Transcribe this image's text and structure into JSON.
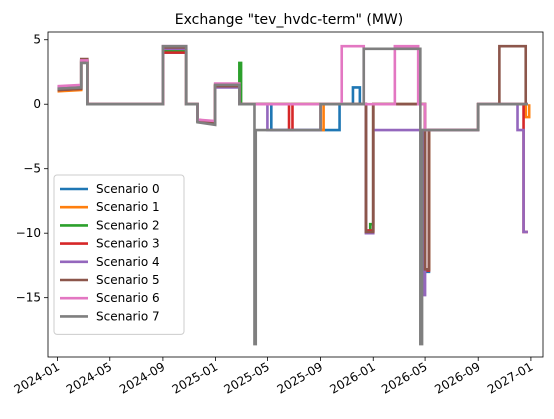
{
  "chart_data": {
    "type": "line",
    "title": "Exchange \"tev_hvdc-term\" (MW)",
    "xlabel": "",
    "ylabel": "",
    "x_axis": "date",
    "xlim": [
      "2023-12-10",
      "2027-01-29"
    ],
    "ylim": [
      -19.6,
      5.6
    ],
    "x_ticks": [
      "2024-01-01",
      "2024-05-01",
      "2024-09-01",
      "2025-01-01",
      "2025-05-01",
      "2025-09-01",
      "2026-01-01",
      "2026-05-01",
      "2026-09-01",
      "2027-01-01"
    ],
    "x_tick_labels": [
      "2024-01",
      "2024-05",
      "2024-09",
      "2025-01",
      "2025-05",
      "2025-09",
      "2026-01",
      "2026-05",
      "2026-09",
      "2027-01"
    ],
    "y_ticks": [
      5,
      0,
      -5,
      -10,
      -15
    ],
    "y_tick_labels": [
      "5",
      "0",
      "−5",
      "−10",
      "−15"
    ],
    "grid": false,
    "legend_position": "lower-left",
    "series": [
      {
        "name": "Scenario 0",
        "color": "#1f77b4",
        "points": [
          [
            "2024-01-01",
            1.3
          ],
          [
            "2024-02-25",
            1.4
          ],
          [
            "2024-02-25",
            3.3
          ],
          [
            "2024-03-10",
            3.3
          ],
          [
            "2024-03-10",
            0
          ],
          [
            "2024-09-01",
            0
          ],
          [
            "2024-09-01",
            4.0
          ],
          [
            "2024-10-25",
            4.0
          ],
          [
            "2024-10-25",
            0
          ],
          [
            "2024-11-20",
            0
          ],
          [
            "2024-11-20",
            -1.3
          ],
          [
            "2024-12-31",
            -1.4
          ],
          [
            "2024-12-31",
            1.4
          ],
          [
            "2025-02-25",
            1.4
          ],
          [
            "2025-02-25",
            0
          ],
          [
            "2025-05-10",
            0
          ],
          [
            "2025-05-10",
            -2.0
          ],
          [
            "2025-10-15",
            -2.0
          ],
          [
            "2025-10-15",
            0
          ],
          [
            "2025-11-15",
            0
          ],
          [
            "2025-11-15",
            1.3
          ],
          [
            "2025-12-01",
            1.3
          ],
          [
            "2025-12-01",
            0
          ],
          [
            "2025-12-15",
            0
          ],
          [
            "2025-12-15",
            -9.8
          ],
          [
            "2026-01-01",
            -9.8
          ],
          [
            "2026-01-01",
            0
          ],
          [
            "2026-05-01",
            0
          ],
          [
            "2026-05-01",
            -13.0
          ],
          [
            "2026-05-10",
            -13.0
          ],
          [
            "2026-05-10",
            -2.0
          ],
          [
            "2026-09-01",
            -2.0
          ],
          [
            "2026-09-01",
            0
          ],
          [
            "2026-12-25",
            0
          ]
        ]
      },
      {
        "name": "Scenario 1",
        "color": "#ff7f0e",
        "points": [
          [
            "2024-01-01",
            1.0
          ],
          [
            "2024-02-25",
            1.1
          ],
          [
            "2024-02-25",
            3.3
          ],
          [
            "2024-03-10",
            3.3
          ],
          [
            "2024-03-10",
            0
          ],
          [
            "2024-09-01",
            0
          ],
          [
            "2024-09-01",
            4.2
          ],
          [
            "2024-10-25",
            4.2
          ],
          [
            "2024-10-25",
            0
          ],
          [
            "2024-11-20",
            0
          ],
          [
            "2024-11-20",
            -1.3
          ],
          [
            "2024-12-31",
            -1.5
          ],
          [
            "2024-12-31",
            1.5
          ],
          [
            "2025-02-25",
            1.5
          ],
          [
            "2025-02-25",
            0
          ],
          [
            "2025-09-01",
            0
          ],
          [
            "2025-09-01",
            -2.0
          ],
          [
            "2025-09-08",
            -2.0
          ],
          [
            "2025-09-08",
            0
          ],
          [
            "2025-12-15",
            0
          ],
          [
            "2025-12-15",
            -9.9
          ],
          [
            "2026-01-01",
            -9.9
          ],
          [
            "2026-01-01",
            0
          ],
          [
            "2026-05-01",
            0
          ],
          [
            "2026-05-01",
            -12.8
          ],
          [
            "2026-05-10",
            -12.8
          ],
          [
            "2026-05-10",
            -2.0
          ],
          [
            "2026-09-01",
            -2.0
          ],
          [
            "2026-09-01",
            0
          ],
          [
            "2026-12-20",
            0
          ],
          [
            "2026-12-20",
            -1.0
          ],
          [
            "2026-12-28",
            -1.0
          ],
          [
            "2026-12-28",
            0
          ]
        ]
      },
      {
        "name": "Scenario 2",
        "color": "#2ca02c",
        "points": [
          [
            "2024-01-01",
            1.2
          ],
          [
            "2024-02-25",
            1.3
          ],
          [
            "2024-02-25",
            3.4
          ],
          [
            "2024-03-10",
            3.4
          ],
          [
            "2024-03-10",
            0
          ],
          [
            "2024-09-01",
            0
          ],
          [
            "2024-09-01",
            4.1
          ],
          [
            "2024-10-25",
            4.1
          ],
          [
            "2024-10-25",
            0
          ],
          [
            "2024-11-20",
            0
          ],
          [
            "2024-11-20",
            -1.3
          ],
          [
            "2024-12-31",
            -1.5
          ],
          [
            "2024-12-31",
            1.5
          ],
          [
            "2025-02-25",
            1.5
          ],
          [
            "2025-02-25",
            3.2
          ],
          [
            "2025-03-01",
            3.2
          ],
          [
            "2025-03-01",
            0
          ],
          [
            "2025-12-15",
            0
          ],
          [
            "2025-12-15",
            -9.9
          ],
          [
            "2025-12-25",
            -9.9
          ],
          [
            "2025-12-25",
            -9.3
          ],
          [
            "2026-01-01",
            -9.3
          ],
          [
            "2026-01-01",
            0
          ],
          [
            "2026-05-01",
            0
          ],
          [
            "2026-05-01",
            -12.8
          ],
          [
            "2026-05-10",
            -12.8
          ],
          [
            "2026-05-10",
            -2.0
          ],
          [
            "2026-09-01",
            -2.0
          ],
          [
            "2026-09-01",
            0
          ],
          [
            "2026-12-25",
            0
          ]
        ]
      },
      {
        "name": "Scenario 3",
        "color": "#d62728",
        "points": [
          [
            "2024-01-01",
            1.1
          ],
          [
            "2024-02-25",
            1.2
          ],
          [
            "2024-02-25",
            3.3
          ],
          [
            "2024-03-10",
            3.3
          ],
          [
            "2024-03-10",
            0
          ],
          [
            "2024-09-01",
            0
          ],
          [
            "2024-09-01",
            4.0
          ],
          [
            "2024-10-25",
            4.0
          ],
          [
            "2024-10-25",
            0
          ],
          [
            "2024-11-20",
            0
          ],
          [
            "2024-11-20",
            -1.2
          ],
          [
            "2024-12-31",
            -1.4
          ],
          [
            "2024-12-31",
            1.4
          ],
          [
            "2025-02-25",
            1.4
          ],
          [
            "2025-02-25",
            0
          ],
          [
            "2025-06-20",
            0
          ],
          [
            "2025-06-20",
            -2.0
          ],
          [
            "2025-06-28",
            -2.0
          ],
          [
            "2025-06-28",
            0
          ],
          [
            "2025-12-15",
            0
          ],
          [
            "2025-12-15",
            -9.8
          ],
          [
            "2026-01-01",
            -9.8
          ],
          [
            "2026-01-01",
            0
          ],
          [
            "2026-05-01",
            0
          ],
          [
            "2026-05-01",
            -12.9
          ],
          [
            "2026-05-10",
            -12.9
          ],
          [
            "2026-05-10",
            -2.0
          ],
          [
            "2026-09-01",
            -2.0
          ],
          [
            "2026-09-01",
            0
          ],
          [
            "2026-12-15",
            0
          ],
          [
            "2026-12-15",
            -9.9
          ],
          [
            "2026-12-25",
            -9.9
          ]
        ]
      },
      {
        "name": "Scenario 4",
        "color": "#9467bd",
        "points": [
          [
            "2024-01-01",
            1.2
          ],
          [
            "2024-02-25",
            1.3
          ],
          [
            "2024-02-25",
            3.4
          ],
          [
            "2024-03-10",
            3.4
          ],
          [
            "2024-03-10",
            0
          ],
          [
            "2024-09-01",
            0
          ],
          [
            "2024-09-01",
            4.3
          ],
          [
            "2024-10-25",
            4.3
          ],
          [
            "2024-10-25",
            0
          ],
          [
            "2024-11-20",
            0
          ],
          [
            "2024-11-20",
            -1.2
          ],
          [
            "2024-12-31",
            -1.4
          ],
          [
            "2024-12-31",
            1.3
          ],
          [
            "2025-02-25",
            1.3
          ],
          [
            "2025-02-25",
            0
          ],
          [
            "2025-05-01",
            0
          ],
          [
            "2025-05-01",
            -2.0
          ],
          [
            "2025-09-01",
            -2.0
          ],
          [
            "2025-09-01",
            0
          ],
          [
            "2025-12-15",
            0
          ],
          [
            "2025-12-15",
            -10.0
          ],
          [
            "2026-01-01",
            -10.0
          ],
          [
            "2026-01-01",
            -2.0
          ],
          [
            "2026-04-25",
            -2.0
          ],
          [
            "2026-04-25",
            -14.8
          ],
          [
            "2026-05-01",
            -14.8
          ],
          [
            "2026-05-01",
            -2.0
          ],
          [
            "2026-09-01",
            -2.0
          ],
          [
            "2026-09-01",
            0
          ],
          [
            "2026-12-01",
            0
          ],
          [
            "2026-12-01",
            -2.0
          ],
          [
            "2026-12-15",
            -2.0
          ],
          [
            "2026-12-15",
            -9.9
          ],
          [
            "2026-12-25",
            -9.9
          ]
        ]
      },
      {
        "name": "Scenario 5",
        "color": "#8c564b",
        "points": [
          [
            "2024-01-01",
            1.1
          ],
          [
            "2024-02-25",
            1.2
          ],
          [
            "2024-02-25",
            3.5
          ],
          [
            "2024-03-10",
            3.5
          ],
          [
            "2024-03-10",
            0
          ],
          [
            "2024-09-01",
            0
          ],
          [
            "2024-09-01",
            4.4
          ],
          [
            "2024-10-25",
            4.4
          ],
          [
            "2024-10-25",
            0
          ],
          [
            "2024-11-20",
            0
          ],
          [
            "2024-11-20",
            -1.3
          ],
          [
            "2024-12-31",
            -1.4
          ],
          [
            "2024-12-31",
            1.4
          ],
          [
            "2025-02-25",
            1.4
          ],
          [
            "2025-02-25",
            0
          ],
          [
            "2025-12-15",
            0
          ],
          [
            "2025-12-15",
            -9.9
          ],
          [
            "2026-01-01",
            -9.9
          ],
          [
            "2026-01-01",
            0
          ],
          [
            "2026-05-01",
            0
          ],
          [
            "2026-05-01",
            -12.8
          ],
          [
            "2026-05-10",
            -12.8
          ],
          [
            "2026-05-10",
            -2.0
          ],
          [
            "2026-09-01",
            -2.0
          ],
          [
            "2026-09-01",
            0
          ],
          [
            "2026-10-20",
            0
          ],
          [
            "2026-10-20",
            4.5
          ],
          [
            "2026-12-20",
            4.5
          ],
          [
            "2026-12-20",
            0
          ],
          [
            "2026-12-25",
            0
          ]
        ]
      },
      {
        "name": "Scenario 6",
        "color": "#e377c2",
        "points": [
          [
            "2024-01-01",
            1.4
          ],
          [
            "2024-02-25",
            1.5
          ],
          [
            "2024-02-25",
            3.4
          ],
          [
            "2024-03-10",
            3.4
          ],
          [
            "2024-03-10",
            0
          ],
          [
            "2024-09-01",
            0
          ],
          [
            "2024-09-01",
            4.5
          ],
          [
            "2024-10-25",
            4.5
          ],
          [
            "2024-10-25",
            0
          ],
          [
            "2024-11-20",
            0
          ],
          [
            "2024-11-20",
            -1.2
          ],
          [
            "2024-12-31",
            -1.3
          ],
          [
            "2024-12-31",
            1.6
          ],
          [
            "2025-02-25",
            1.6
          ],
          [
            "2025-02-25",
            0
          ],
          [
            "2025-10-20",
            0
          ],
          [
            "2025-10-20",
            4.5
          ],
          [
            "2025-12-10",
            4.5
          ],
          [
            "2025-12-10",
            0
          ],
          [
            "2026-02-20",
            0
          ],
          [
            "2026-02-20",
            4.5
          ],
          [
            "2026-04-15",
            4.5
          ],
          [
            "2026-04-15",
            0
          ],
          [
            "2026-05-01",
            0
          ],
          [
            "2026-05-01",
            -2.0
          ],
          [
            "2026-09-01",
            -2.0
          ],
          [
            "2026-09-01",
            0
          ],
          [
            "2026-12-25",
            0
          ]
        ]
      },
      {
        "name": "Scenario 7",
        "color": "#7f7f7f",
        "points": [
          [
            "2024-01-01",
            1.2
          ],
          [
            "2024-02-25",
            1.3
          ],
          [
            "2024-02-25",
            3.2
          ],
          [
            "2024-03-10",
            3.2
          ],
          [
            "2024-03-10",
            0
          ],
          [
            "2024-09-01",
            0
          ],
          [
            "2024-09-01",
            4.5
          ],
          [
            "2024-10-25",
            4.5
          ],
          [
            "2024-10-25",
            0
          ],
          [
            "2024-11-20",
            0
          ],
          [
            "2024-11-20",
            -1.4
          ],
          [
            "2024-12-31",
            -1.6
          ],
          [
            "2024-12-31",
            1.5
          ],
          [
            "2025-02-25",
            1.5
          ],
          [
            "2025-02-25",
            0
          ],
          [
            "2025-04-01",
            0
          ],
          [
            "2025-04-01",
            -18.6
          ],
          [
            "2025-04-04",
            -18.6
          ],
          [
            "2025-04-04",
            -2.0
          ],
          [
            "2025-09-01",
            -2.0
          ],
          [
            "2025-09-01",
            0
          ],
          [
            "2025-12-10",
            0
          ],
          [
            "2025-12-10",
            4.3
          ],
          [
            "2026-04-20",
            4.3
          ],
          [
            "2026-04-20",
            -18.6
          ],
          [
            "2026-04-24",
            -18.6
          ],
          [
            "2026-04-24",
            -2.0
          ],
          [
            "2026-09-01",
            -2.0
          ],
          [
            "2026-09-01",
            0
          ],
          [
            "2026-12-25",
            0
          ]
        ]
      }
    ]
  }
}
